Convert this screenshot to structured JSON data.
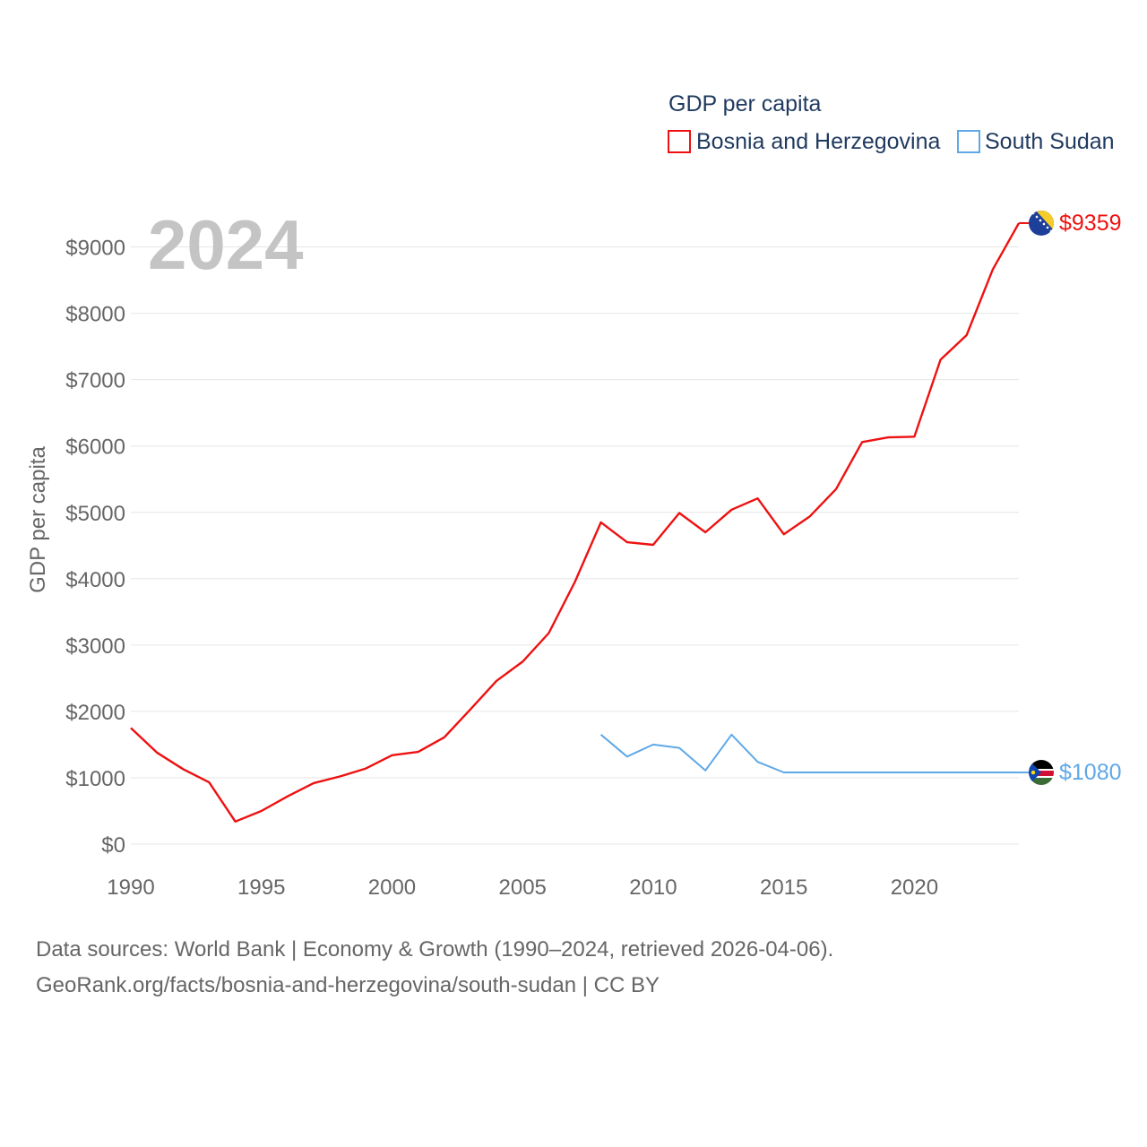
{
  "chart_data": {
    "type": "line",
    "title": "",
    "big_year": "2024",
    "legend_title": "GDP per capita",
    "ylabel": "GDP per capita",
    "xlabel": "",
    "xlim": [
      1990,
      2024
    ],
    "ylim": [
      0,
      9500
    ],
    "x_ticks": [
      1990,
      1995,
      2000,
      2005,
      2010,
      2015,
      2020
    ],
    "y_ticks": [
      0,
      1000,
      2000,
      3000,
      4000,
      5000,
      6000,
      7000,
      8000,
      9000
    ],
    "y_tick_labels": [
      "$0",
      "$1000",
      "$2000",
      "$3000",
      "$4000",
      "$5000",
      "$6000",
      "$7000",
      "$8000",
      "$9000"
    ],
    "grid": true,
    "series": [
      {
        "name": "Bosnia and Herzegovina",
        "color": "#ee1111",
        "end_label": "$9359",
        "flag_icon": "bosnia-flag-icon",
        "x": [
          1990,
          1991,
          1992,
          1993,
          1994,
          1995,
          1996,
          1997,
          1998,
          1999,
          2000,
          2001,
          2002,
          2003,
          2004,
          2005,
          2006,
          2007,
          2008,
          2009,
          2010,
          2011,
          2012,
          2013,
          2014,
          2015,
          2016,
          2017,
          2018,
          2019,
          2020,
          2021,
          2022,
          2023,
          2024
        ],
        "values": [
          1750,
          1380,
          1130,
          930,
          340,
          500,
          720,
          920,
          1020,
          1140,
          1340,
          1390,
          1610,
          2030,
          2460,
          2750,
          3180,
          3950,
          4850,
          4550,
          4510,
          4990,
          4700,
          5040,
          5210,
          4670,
          4940,
          5350,
          6060,
          6130,
          6140,
          7300,
          7670,
          8660,
          9359
        ]
      },
      {
        "name": "South Sudan",
        "color": "#5fa8e8",
        "end_label": "$1080",
        "flag_icon": "south-sudan-flag-icon",
        "x": [
          2008,
          2009,
          2010,
          2011,
          2012,
          2013,
          2014,
          2015,
          2016,
          2017,
          2018,
          2019,
          2020,
          2021,
          2022,
          2023,
          2024
        ],
        "values": [
          1650,
          1320,
          1500,
          1450,
          1110,
          1650,
          1240,
          1080,
          1080,
          1080,
          1080,
          1080,
          1080,
          1080,
          1080,
          1080,
          1080
        ]
      }
    ]
  },
  "footer": {
    "line1": "Data sources: World Bank | Economy & Growth (1990–2024, retrieved 2026-04-06).",
    "line2": "GeoRank.org/facts/bosnia-and-herzegovina/south-sudan | CC BY"
  }
}
